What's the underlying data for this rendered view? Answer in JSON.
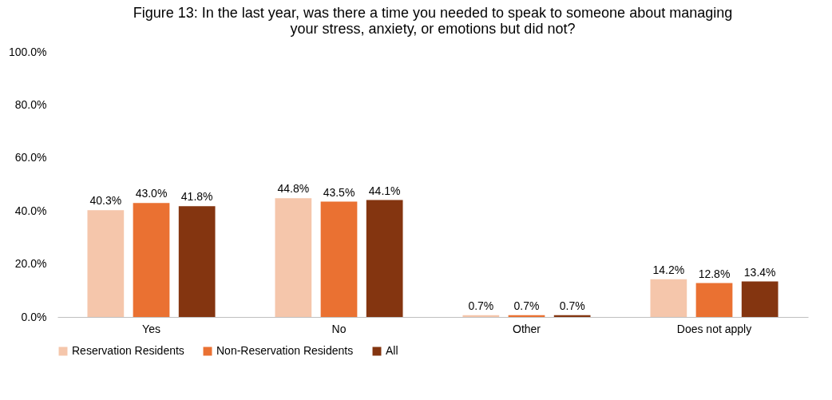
{
  "chart_data": {
    "type": "bar",
    "title": "Figure 13: In the last year, was there a time you needed to speak to someone about managing your stress, anxiety, or emotions but did not?",
    "categories": [
      "Yes",
      "No",
      "Other",
      "Does not apply"
    ],
    "series": [
      {
        "name": "Reservation Residents",
        "color": "#f5c6ab",
        "values": [
          40.3,
          44.8,
          0.7,
          14.2
        ],
        "value_labels": [
          "40.3%",
          "44.8%",
          "0.7%",
          "14.2%"
        ]
      },
      {
        "name": "Non-Reservation Residents",
        "color": "#ea7132",
        "values": [
          43.0,
          43.5,
          0.7,
          12.8
        ],
        "value_labels": [
          "43.0%",
          "43.5%",
          "0.7%",
          "12.8%"
        ]
      },
      {
        "name": "All",
        "color": "#843510",
        "values": [
          41.8,
          44.1,
          0.7,
          13.4
        ],
        "value_labels": [
          "41.8%",
          "44.1%",
          "0.7%",
          "13.4%"
        ]
      }
    ],
    "ylim": [
      0,
      100
    ],
    "yticks": [
      {
        "value": 0,
        "label": "0.0%"
      },
      {
        "value": 20,
        "label": "20.0%"
      },
      {
        "value": 40,
        "label": "40.0%"
      },
      {
        "value": 60,
        "label": "60.0%"
      },
      {
        "value": 80,
        "label": "80.0%"
      },
      {
        "value": 100,
        "label": "100.0%"
      }
    ],
    "grid": false,
    "legend": "bottom"
  }
}
